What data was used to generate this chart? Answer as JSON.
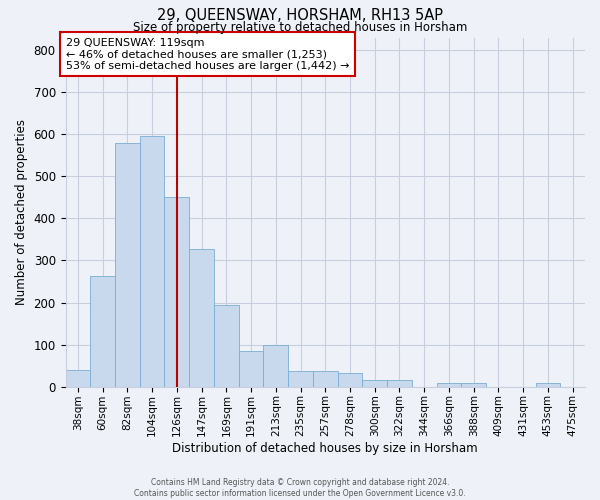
{
  "title": "29, QUEENSWAY, HORSHAM, RH13 5AP",
  "subtitle": "Size of property relative to detached houses in Horsham",
  "xlabel": "Distribution of detached houses by size in Horsham",
  "ylabel": "Number of detached properties",
  "categories": [
    "38sqm",
    "60sqm",
    "82sqm",
    "104sqm",
    "126sqm",
    "147sqm",
    "169sqm",
    "191sqm",
    "213sqm",
    "235sqm",
    "257sqm",
    "278sqm",
    "300sqm",
    "322sqm",
    "344sqm",
    "366sqm",
    "388sqm",
    "409sqm",
    "431sqm",
    "453sqm",
    "475sqm"
  ],
  "values": [
    40,
    263,
    580,
    596,
    450,
    328,
    193,
    85,
    100,
    38,
    38,
    32,
    15,
    15,
    0,
    8,
    8,
    0,
    0,
    8,
    0
  ],
  "bar_color": "#c8d8ed",
  "bar_edge_color": "#7aadd4",
  "vline_x_index": 4,
  "vline_color": "#bb0000",
  "annotation_text": "29 QUEENSWAY: 119sqm\n← 46% of detached houses are smaller (1,253)\n53% of semi-detached houses are larger (1,442) →",
  "annotation_box_color": "#ffffff",
  "annotation_box_edge_color": "#cc0000",
  "ylim": [
    0,
    830
  ],
  "yticks": [
    0,
    100,
    200,
    300,
    400,
    500,
    600,
    700,
    800
  ],
  "footer_line1": "Contains HM Land Registry data © Crown copyright and database right 2024.",
  "footer_line2": "Contains public sector information licensed under the Open Government Licence v3.0.",
  "bg_color": "#eef2f8",
  "plot_bg_color": "#eef2f8",
  "grid_color": "#c8cedd"
}
